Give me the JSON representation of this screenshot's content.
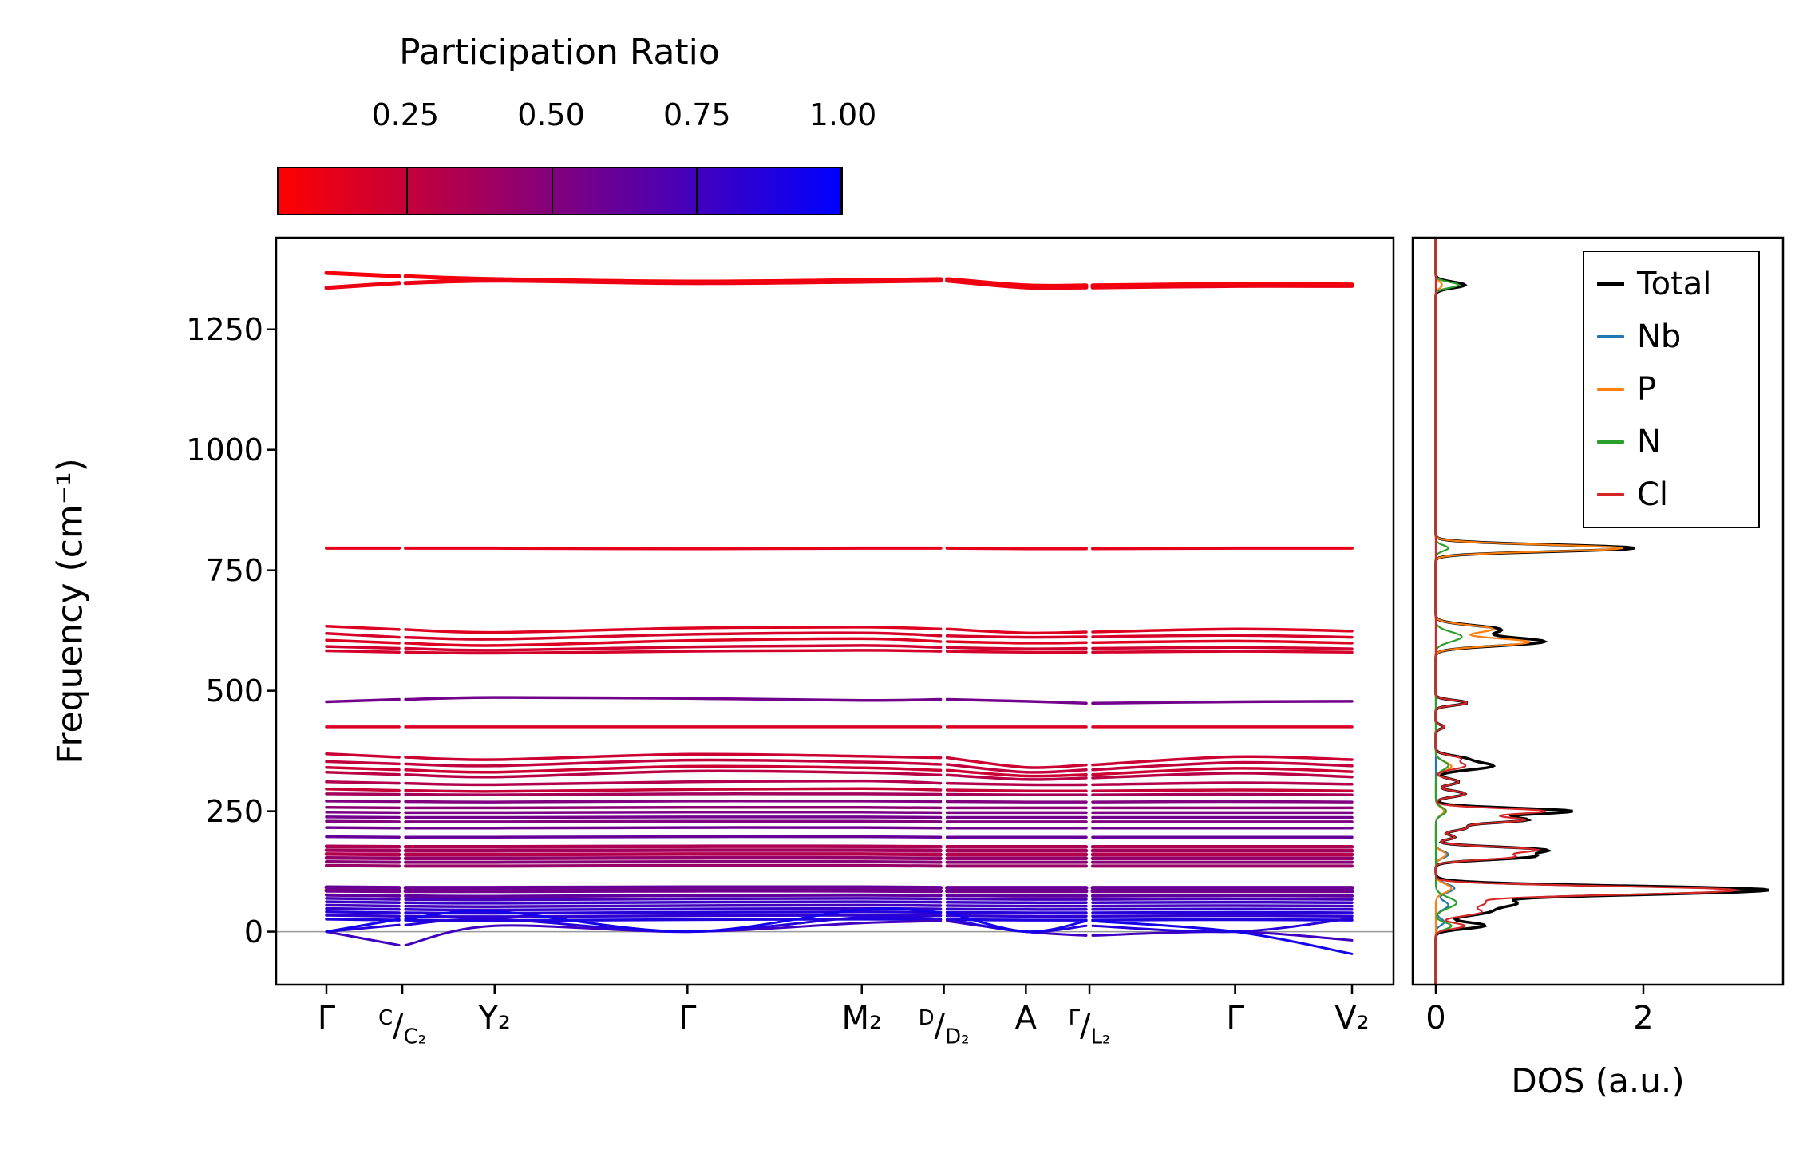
{
  "colorbar": {
    "title": "Participation Ratio",
    "ticks": [
      "0.25",
      "0.50",
      "0.75",
      "1.00"
    ],
    "tick_values": [
      0.25,
      0.5,
      0.75,
      1.0
    ],
    "range": [
      0.03,
      1.0
    ],
    "color_low": "#ff0000",
    "color_high": "#0000ff"
  },
  "main": {
    "ylabel": "Frequency (cm⁻¹)",
    "yticks": [
      "0",
      "250",
      "500",
      "750",
      "1000",
      "1250"
    ],
    "ytick_values": [
      0,
      250,
      500,
      750,
      1000,
      1250
    ],
    "xlabels": [
      {
        "text": "Γ"
      },
      {
        "sup": "C",
        "sub": "C₂"
      },
      {
        "text": "Y₂"
      },
      {
        "text": "Γ"
      },
      {
        "text": "M₂"
      },
      {
        "sup": "D",
        "sub": "D₂"
      },
      {
        "text": "A"
      },
      {
        "sup": "Γ",
        "sub": "L₂"
      },
      {
        "text": "Γ"
      },
      {
        "text": "V₂"
      }
    ]
  },
  "dos": {
    "xlabel": "DOS (a.u.)",
    "xticks": [
      "0",
      "2"
    ],
    "xtick_values": [
      0,
      2
    ]
  },
  "legend": {
    "entries": [
      {
        "label": "Total",
        "color": "#000000",
        "lw": 6
      },
      {
        "label": "Nb",
        "color": "#1f77b4",
        "lw": 4
      },
      {
        "label": "P",
        "color": "#ff7f0e",
        "lw": 4
      },
      {
        "label": "N",
        "color": "#2ca02c",
        "lw": 4
      },
      {
        "label": "Cl",
        "color": "#d62728",
        "lw": 4
      }
    ]
  },
  "chart_data": {
    "type": "line",
    "title": "",
    "ylabel": "Frequency (cm⁻¹)",
    "freq_axis": {
      "range": [
        -110,
        1440
      ],
      "ticks": [
        0,
        250,
        500,
        750,
        1000,
        1250
      ]
    },
    "dos_axis": {
      "label": "DOS (a.u.)",
      "range": [
        0,
        3.35
      ],
      "ticks": [
        0,
        2
      ]
    },
    "colormap": {
      "label": "Participation Ratio",
      "low": "#ff0000",
      "high": "#0000ff",
      "range": [
        0,
        1
      ]
    },
    "kpath": {
      "labels": [
        "Γ",
        "C/C₂",
        "Y₂",
        "Γ",
        "M₂",
        "D/D₂",
        "A",
        "Γ/L₂",
        "Γ",
        "V₂"
      ],
      "fractions": [
        0,
        0.074,
        0.164,
        0.352,
        0.522,
        0.602,
        0.682,
        0.744,
        0.886,
        1.0
      ],
      "breaks": [
        1,
        5,
        7
      ]
    },
    "bands": [
      {
        "pr": 0.04,
        "lw": 5,
        "f": [
          1367,
          1360,
          1354,
          1349,
          1352,
          1354,
          1341,
          1341,
          1344,
          1343
        ]
      },
      {
        "pr": 0.07,
        "lw": 5,
        "f": [
          1336,
          1346,
          1351,
          1346,
          1349,
          1351,
          1337,
          1337,
          1340,
          1340
        ]
      },
      {
        "pr": 0.1,
        "lw": 4,
        "f": [
          796,
          796,
          796,
          795,
          796,
          796,
          795,
          795,
          796,
          796
        ]
      },
      {
        "pr": 0.13,
        "lw": 3.5,
        "f": [
          634,
          627,
          621,
          630,
          632,
          628,
          620,
          622,
          628,
          624
        ]
      },
      {
        "pr": 0.16,
        "lw": 3.5,
        "f": [
          619,
          611,
          607,
          617,
          620,
          614,
          611,
          612,
          615,
          611
        ]
      },
      {
        "pr": 0.13,
        "lw": 3.5,
        "f": [
          605,
          599,
          594,
          604,
          608,
          602,
          599,
          600,
          603,
          599
        ]
      },
      {
        "pr": 0.18,
        "lw": 3.5,
        "f": [
          592,
          588,
          584,
          591,
          594,
          590,
          587,
          588,
          590,
          587
        ]
      },
      {
        "pr": 0.17,
        "lw": 3.5,
        "f": [
          583,
          580,
          578,
          582,
          584,
          582,
          580,
          580,
          582,
          580
        ]
      },
      {
        "pr": 0.55,
        "lw": 3.5,
        "f": [
          477,
          482,
          486,
          484,
          480,
          482,
          478,
          474,
          477,
          478
        ]
      },
      {
        "pr": 0.14,
        "lw": 3.5,
        "f": [
          425,
          425,
          425,
          425,
          425,
          425,
          425,
          425,
          425,
          425
        ]
      },
      {
        "pr": 0.2,
        "lw": 3.5,
        "f": [
          369,
          362,
          357,
          368,
          364,
          361,
          341,
          346,
          363,
          357
        ]
      },
      {
        "pr": 0.24,
        "lw": 3.5,
        "f": [
          353,
          348,
          344,
          356,
          352,
          347,
          331,
          336,
          351,
          344
        ]
      },
      {
        "pr": 0.2,
        "lw": 3.5,
        "f": [
          341,
          336,
          331,
          343,
          340,
          335,
          323,
          326,
          339,
          332
        ]
      },
      {
        "pr": 0.27,
        "lw": 3.5,
        "f": [
          331,
          326,
          321,
          333,
          330,
          325,
          316,
          319,
          329,
          321
        ]
      },
      {
        "pr": 0.3,
        "lw": 3.5,
        "f": [
          311,
          308,
          305,
          311,
          313,
          308,
          305,
          305,
          309,
          306
        ]
      },
      {
        "pr": 0.22,
        "lw": 3.5,
        "f": [
          296,
          293,
          291,
          295,
          297,
          294,
          292,
          292,
          294,
          292
        ]
      },
      {
        "pr": 0.36,
        "lw": 3.5,
        "f": [
          286,
          285,
          284,
          286,
          286,
          285,
          284,
          284,
          285,
          284
        ]
      },
      {
        "pr": 0.5,
        "lw": 3.5,
        "f": [
          271,
          270,
          269,
          271,
          271,
          270,
          269,
          269,
          270,
          269
        ]
      },
      {
        "pr": 0.45,
        "lw": 3.5,
        "f": [
          258,
          257,
          257,
          258,
          258,
          257,
          257,
          257,
          257,
          257
        ]
      },
      {
        "pr": 0.52,
        "lw": 3.5,
        "f": [
          248,
          247,
          247,
          248,
          248,
          247,
          247,
          247,
          247,
          247
        ]
      },
      {
        "pr": 0.55,
        "lw": 3.5,
        "f": [
          238,
          237,
          237,
          238,
          238,
          237,
          237,
          237,
          237,
          237
        ]
      },
      {
        "pr": 0.5,
        "lw": 3.5,
        "f": [
          229,
          228,
          228,
          229,
          229,
          228,
          228,
          228,
          228,
          228
        ]
      },
      {
        "pr": 0.56,
        "lw": 3.5,
        "f": [
          216,
          215,
          215,
          216,
          216,
          215,
          215,
          215,
          215,
          215
        ]
      },
      {
        "pr": 0.6,
        "lw": 3.5,
        "f": [
          197,
          196,
          196,
          197,
          197,
          196,
          196,
          196,
          196,
          196
        ]
      },
      {
        "pr": 0.32,
        "lw": 4.5,
        "f": [
          177,
          176,
          176,
          177,
          177,
          176,
          176,
          176,
          176,
          176
        ]
      },
      {
        "pr": 0.36,
        "lw": 4.5,
        "f": [
          169,
          168,
          168,
          169,
          169,
          168,
          168,
          168,
          168,
          168
        ]
      },
      {
        "pr": 0.3,
        "lw": 4.5,
        "f": [
          161,
          160,
          160,
          161,
          161,
          160,
          160,
          160,
          160,
          160
        ]
      },
      {
        "pr": 0.42,
        "lw": 4.5,
        "f": [
          153,
          152,
          152,
          153,
          153,
          152,
          152,
          152,
          152,
          152
        ]
      },
      {
        "pr": 0.46,
        "lw": 4,
        "f": [
          145,
          144,
          144,
          145,
          145,
          144,
          144,
          144,
          144,
          144
        ]
      },
      {
        "pr": 0.4,
        "lw": 4,
        "f": [
          137,
          136,
          136,
          137,
          137,
          136,
          136,
          136,
          136,
          136
        ]
      },
      {
        "pr": 0.58,
        "lw": 5,
        "f": [
          92,
          91,
          91,
          92,
          92,
          91,
          91,
          91,
          91,
          91
        ]
      },
      {
        "pr": 0.55,
        "lw": 5,
        "f": [
          85,
          84,
          84,
          85,
          85,
          84,
          84,
          84,
          84,
          84
        ]
      },
      {
        "pr": 0.62,
        "lw": 4,
        "f": [
          76,
          74,
          73,
          75,
          76,
          75,
          74,
          74,
          75,
          74
        ]
      },
      {
        "pr": 0.72,
        "lw": 3.5,
        "f": [
          69,
          67,
          66,
          68,
          69,
          68,
          67,
          67,
          68,
          67
        ]
      },
      {
        "pr": 0.78,
        "lw": 3.5,
        "f": [
          62,
          60,
          59,
          61,
          62,
          61,
          60,
          60,
          61,
          60
        ]
      },
      {
        "pr": 0.74,
        "lw": 3.5,
        "f": [
          55,
          53,
          52,
          54,
          55,
          54,
          53,
          53,
          54,
          53
        ]
      },
      {
        "pr": 0.8,
        "lw": 3.5,
        "f": [
          48,
          46,
          45,
          47,
          48,
          47,
          46,
          46,
          47,
          46
        ]
      },
      {
        "pr": 0.85,
        "lw": 3.5,
        "f": [
          41,
          39,
          38,
          40,
          41,
          40,
          39,
          39,
          40,
          39
        ]
      },
      {
        "pr": 0.82,
        "lw": 3.5,
        "f": [
          34,
          32,
          31,
          33,
          34,
          33,
          32,
          32,
          33,
          32
        ]
      },
      {
        "pr": 0.88,
        "lw": 3.5,
        "f": [
          26,
          24,
          23,
          25,
          26,
          25,
          24,
          24,
          25,
          24
        ]
      },
      {
        "pr": 0.75,
        "lw": 3,
        "f": [
          0,
          -28,
          12,
          0,
          18,
          22,
          0,
          -8,
          0,
          -18
        ]
      },
      {
        "pr": 0.85,
        "lw": 3,
        "f": [
          0,
          14,
          26,
          0,
          30,
          26,
          0,
          12,
          0,
          28
        ]
      },
      {
        "pr": 0.92,
        "lw": 3,
        "f": [
          0,
          26,
          42,
          0,
          46,
          40,
          0,
          22,
          0,
          -46
        ]
      }
    ],
    "dos_series": [
      {
        "name": "Total",
        "color": "#000000",
        "total": true
      },
      {
        "name": "Nb",
        "color": "#1f77b4",
        "peaks": [
          [
            250,
            0.08,
            8
          ],
          [
            160,
            0.12,
            7
          ],
          [
            90,
            0.18,
            9
          ],
          [
            55,
            0.12,
            9
          ],
          [
            20,
            0.08,
            7
          ]
        ]
      },
      {
        "name": "P",
        "color": "#ff7f0e",
        "peaks": [
          [
            1342,
            0.06,
            7
          ],
          [
            796,
            1.8,
            7
          ],
          [
            628,
            0.55,
            8
          ],
          [
            601,
            0.9,
            8
          ],
          [
            343,
            0.15,
            9
          ],
          [
            250,
            0.08,
            8
          ],
          [
            160,
            0.1,
            7
          ],
          [
            90,
            0.15,
            9
          ]
        ]
      },
      {
        "name": "N",
        "color": "#2ca02c",
        "peaks": [
          [
            1342,
            0.22,
            6
          ],
          [
            796,
            0.12,
            6
          ],
          [
            612,
            0.25,
            10
          ],
          [
            345,
            0.12,
            9
          ],
          [
            250,
            0.1,
            8
          ],
          [
            60,
            0.2,
            11
          ],
          [
            12,
            0.15,
            7
          ]
        ]
      },
      {
        "name": "Cl",
        "color": "#d62728",
        "peaks": [
          [
            475,
            0.3,
            5
          ],
          [
            425,
            0.08,
            4
          ],
          [
            360,
            0.22,
            6
          ],
          [
            344,
            0.28,
            7
          ],
          [
            311,
            0.22,
            6
          ],
          [
            286,
            0.28,
            6
          ],
          [
            250,
            1.05,
            6
          ],
          [
            232,
            0.85,
            6
          ],
          [
            215,
            0.28,
            6
          ],
          [
            196,
            0.18,
            5
          ],
          [
            170,
            0.95,
            6
          ],
          [
            155,
            0.72,
            6
          ],
          [
            88,
            2.55,
            7
          ],
          [
            78,
            1.1,
            6
          ],
          [
            60,
            0.45,
            8
          ],
          [
            40,
            0.42,
            8
          ],
          [
            12,
            0.28,
            6
          ]
        ]
      }
    ]
  }
}
